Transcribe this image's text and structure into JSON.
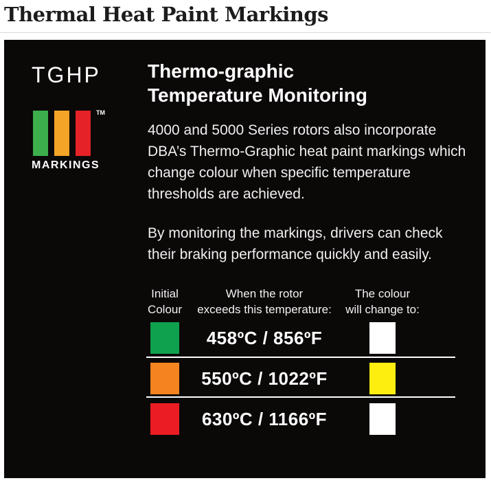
{
  "page": {
    "title": "Thermal Heat Paint Markings"
  },
  "logo": {
    "acronym": "TGHP",
    "trademark": "TM",
    "caption": "MARKINGS",
    "bar_colors": {
      "green": "#3caf4c",
      "amber": "#f4a427",
      "red": "#e52227"
    }
  },
  "content": {
    "heading_line1": "Thermo-graphic",
    "heading_line2": "Temperature Monitoring",
    "paragraph1": "4000 and 5000 Series rotors also incorporate DBA’s Thermo-Graphic heat paint markings which change colour when specific temperature thresholds are achieved.",
    "paragraph2": "By monitoring the markings, drivers can check their braking performance quickly and easily."
  },
  "table": {
    "header_col1_line1": "Initial",
    "header_col1_line2": "Colour",
    "header_col2_line1": "When the rotor",
    "header_col2_line2": "exceeds this temperature:",
    "header_col3_line1": "The colour",
    "header_col3_line2": "will change to:",
    "rows": [
      {
        "initial_color": "#0fa14d",
        "temperature": "458ºC / 856ºF",
        "change_color": "#ffffff"
      },
      {
        "initial_color": "#f5831f",
        "temperature": "550ºC / 1022ºF",
        "change_color": "#fdee10"
      },
      {
        "initial_color": "#ec1c24",
        "temperature": "630ºC / 1166ºF",
        "change_color": "#ffffff"
      }
    ]
  }
}
